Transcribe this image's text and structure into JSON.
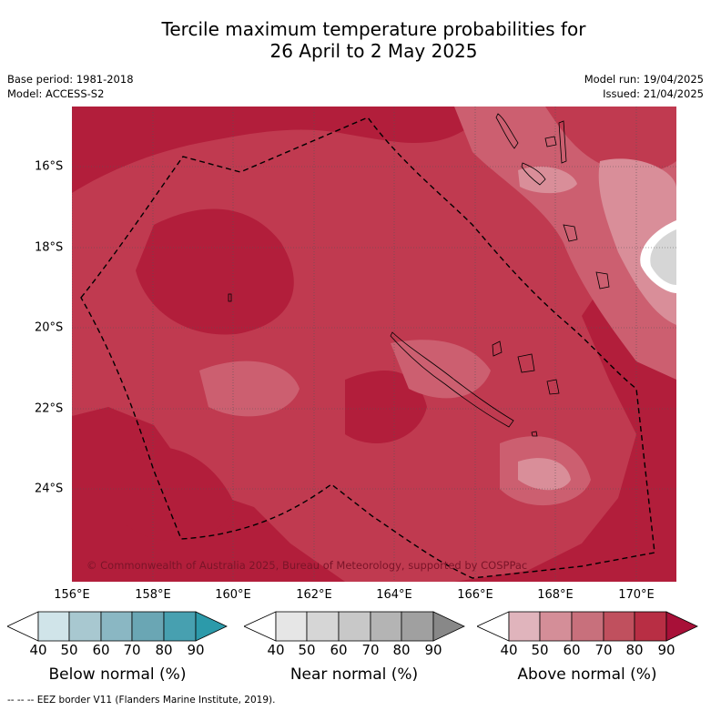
{
  "title_line1": "Tercile maximum temperature probabilities for",
  "title_line2": "26 April to 2 May 2025",
  "meta_left": [
    "Base period: 1981-2018",
    "Model: ACCESS-S2"
  ],
  "meta_right": [
    "Model run: 19/04/2025",
    "Issued: 21/04/2025"
  ],
  "lat_labels": [
    "16°S",
    "18°S",
    "20°S",
    "22°S",
    "24°S"
  ],
  "lon_labels": [
    "156°E",
    "158°E",
    "160°E",
    "162°E",
    "164°E",
    "166°E",
    "168°E",
    "170°E"
  ],
  "copyright": "© Commonwealth of Australia 2025, Bureau of Meteorology, supported by COSPPac",
  "colorbars": [
    {
      "label": "Below normal (%)",
      "ticks": [
        "40",
        "50",
        "60",
        "70",
        "80",
        "90"
      ],
      "colors": [
        "#d0e4e9",
        "#a8c8d0",
        "#8ab7c3",
        "#6aa6b4",
        "#47a0b0",
        "#2c9aaa"
      ]
    },
    {
      "label": "Near normal (%)",
      "ticks": [
        "40",
        "50",
        "60",
        "70",
        "80",
        "90"
      ],
      "colors": [
        "#e6e6e6",
        "#d6d6d6",
        "#c8c8c8",
        "#b4b4b4",
        "#a0a0a0",
        "#888888"
      ]
    },
    {
      "label": "Above normal (%)",
      "ticks": [
        "40",
        "50",
        "60",
        "70",
        "80",
        "90"
      ],
      "colors": [
        "#e0b4bc",
        "#d48e98",
        "#c8707c",
        "#c0505e",
        "#b82e44",
        "#a81038"
      ]
    }
  ],
  "footer": "--  --  -- EEZ border V11 (Flanders Marine Institute, 2019).",
  "colors": {
    "above_80": "#b21e3b",
    "above_70": "#c03a50",
    "above_60": "#cc5f70",
    "above_50": "#d98e99",
    "near_normal": "#d6d6d6"
  }
}
